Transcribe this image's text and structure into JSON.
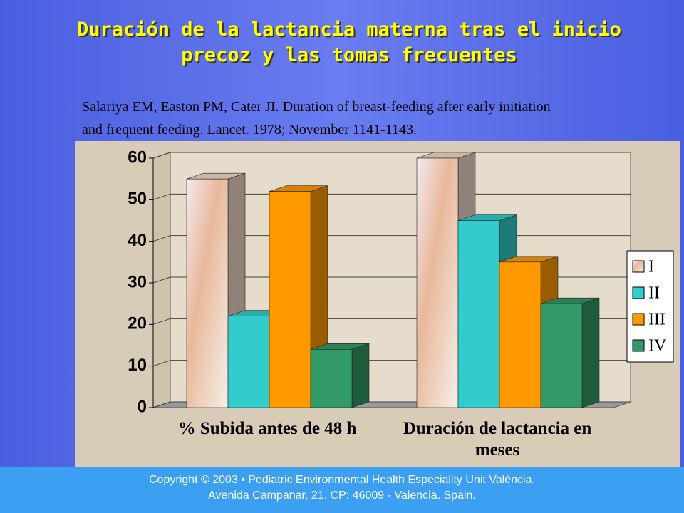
{
  "slide": {
    "title": [
      "Duración de la lactancia materna tras el inicio",
      "precoz y las tomas frecuentes"
    ],
    "citation": [
      "Salariya EM, Easton PM, Cater JI. Duration of breast-feeding after early initiation",
      "and frequent feeding. Lancet. 1978; November 1141-1143."
    ]
  },
  "footer": [
    "Copyright © 2003 • Pediatric Environmental Health Especiality Unit València.",
    "Avenida Campanar, 21. CP: 46009 - Valencia. Spain."
  ],
  "chart_data": {
    "type": "bar3d",
    "categories": [
      "% Subida antes de 48 h",
      "Duración de lactancia en meses"
    ],
    "series": [
      {
        "name": "I",
        "color": "#f0d8c8",
        "values": [
          55,
          60
        ]
      },
      {
        "name": "II",
        "color": "#33cccc",
        "values": [
          22,
          45
        ]
      },
      {
        "name": "III",
        "color": "#ff9900",
        "values": [
          52,
          35
        ]
      },
      {
        "name": "IV",
        "color": "#339966",
        "values": [
          14,
          25
        ]
      }
    ],
    "ylim": [
      0,
      60
    ],
    "yticks": [
      0,
      10,
      20,
      30,
      40,
      50,
      60
    ],
    "grid": true,
    "legend": "right"
  }
}
